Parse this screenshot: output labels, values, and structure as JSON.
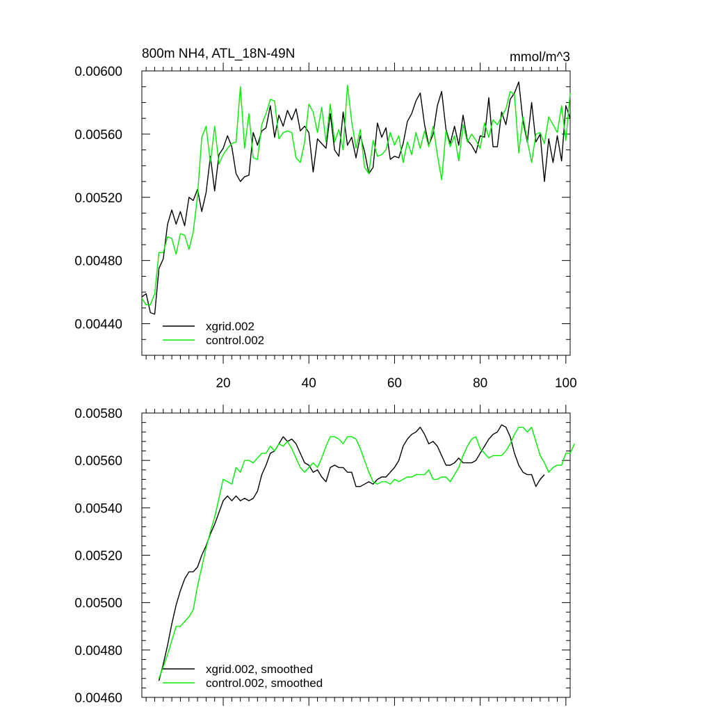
{
  "chart_data": [
    {
      "type": "line",
      "title_left": "800m NH4, ATL_18N-49N",
      "title_right": "mmol/m^3",
      "xlim": [
        1,
        101
      ],
      "ylim": [
        0.0042,
        0.006
      ],
      "x_ticks": [
        20,
        40,
        60,
        80,
        100
      ],
      "x_tick_labels": [
        "20",
        "40",
        "60",
        "80",
        "100"
      ],
      "y_ticks": [
        0.0044,
        0.0048,
        0.0052,
        0.0056,
        0.006
      ],
      "y_tick_labels": [
        "0.00440",
        "0.00480",
        "0.00520",
        "0.00560",
        "0.00600"
      ],
      "legend_position": "bottom-left",
      "series": [
        {
          "name": "xgrid.002",
          "color": "#000000",
          "values": [
            0.00457,
            0.00459,
            0.00447,
            0.00446,
            0.00475,
            0.00481,
            0.00503,
            0.00512,
            0.00503,
            0.00511,
            0.00502,
            0.0052,
            0.00518,
            0.00525,
            0.00511,
            0.00523,
            0.00546,
            0.00524,
            0.00547,
            0.00551,
            0.00559,
            0.00552,
            0.00535,
            0.0053,
            0.00533,
            0.00534,
            0.00561,
            0.00553,
            0.00562,
            0.00564,
            0.00578,
            0.00558,
            0.00572,
            0.00565,
            0.00575,
            0.00569,
            0.00576,
            0.00562,
            0.00565,
            0.00561,
            0.00536,
            0.00557,
            0.00554,
            0.00551,
            0.00573,
            0.0055,
            0.00546,
            0.00574,
            0.00553,
            0.00558,
            0.00545,
            0.00559,
            0.00549,
            0.00535,
            0.00539,
            0.00567,
            0.00558,
            0.00564,
            0.00544,
            0.00546,
            0.00545,
            0.00554,
            0.00568,
            0.00573,
            0.00581,
            0.00586,
            0.00566,
            0.00553,
            0.0056,
            0.00578,
            0.00587,
            0.00563,
            0.00554,
            0.00565,
            0.00553,
            0.00572,
            0.00556,
            0.00553,
            0.00548,
            0.00559,
            0.00558,
            0.00583,
            0.00552,
            0.00552,
            0.00574,
            0.00566,
            0.00582,
            0.00586,
            0.00593,
            0.00568,
            0.00555,
            0.0058,
            0.00555,
            0.0056,
            0.0053,
            0.00557,
            0.00542,
            0.00559,
            0.00543,
            0.00578,
            0.0057
          ]
        },
        {
          "name": "control.002",
          "color": "#00ee00",
          "values": [
            0.00456,
            0.00452,
            0.00452,
            0.00459,
            0.00485,
            0.00485,
            0.00495,
            0.00494,
            0.00484,
            0.00497,
            0.00496,
            0.00487,
            0.00498,
            0.00521,
            0.00558,
            0.00565,
            0.00542,
            0.00565,
            0.00541,
            0.00547,
            0.00551,
            0.00554,
            0.00555,
            0.0059,
            0.00551,
            0.00573,
            0.00545,
            0.00544,
            0.00566,
            0.00573,
            0.00582,
            0.00581,
            0.00557,
            0.00561,
            0.00562,
            0.00561,
            0.00545,
            0.00542,
            0.00555,
            0.00579,
            0.00574,
            0.00561,
            0.00577,
            0.00555,
            0.00579,
            0.00555,
            0.00563,
            0.0055,
            0.00591,
            0.00568,
            0.00551,
            0.00563,
            0.00539,
            0.00535,
            0.00556,
            0.00546,
            0.00547,
            0.0055,
            0.00561,
            0.00553,
            0.00559,
            0.00542,
            0.00555,
            0.00547,
            0.00561,
            0.00551,
            0.00562,
            0.00552,
            0.00565,
            0.00547,
            0.00531,
            0.00562,
            0.00552,
            0.00559,
            0.00543,
            0.00566,
            0.00555,
            0.0056,
            0.00556,
            0.00551,
            0.00567,
            0.00558,
            0.00569,
            0.00566,
            0.00571,
            0.00576,
            0.00587,
            0.00585,
            0.00548,
            0.00571,
            0.00556,
            0.00542,
            0.0056,
            0.00561,
            0.00554,
            0.00571,
            0.00566,
            0.00561,
            0.00578,
            0.00556,
            0.00586
          ]
        }
      ]
    },
    {
      "type": "line",
      "xlim": [
        1,
        101
      ],
      "ylim": [
        0.0046,
        0.0058
      ],
      "x_ticks": [
        20,
        40,
        60,
        80,
        100
      ],
      "y_ticks": [
        0.0046,
        0.0048,
        0.005,
        0.0052,
        0.0054,
        0.0056,
        0.0058
      ],
      "y_tick_labels": [
        "0.00460",
        "0.00480",
        "0.00500",
        "0.00520",
        "0.00540",
        "0.00560",
        "0.00580"
      ],
      "legend_position": "bottom-left",
      "series": [
        {
          "name": "xgrid.002, smoothed",
          "color": "#000000",
          "x_start": 5,
          "values": [
            0.00467,
            0.00474,
            0.00482,
            0.00491,
            0.00499,
            0.00505,
            0.0051,
            0.00513,
            0.00513,
            0.00515,
            0.0052,
            0.00524,
            0.00529,
            0.00533,
            0.00538,
            0.00543,
            0.00545,
            0.00543,
            0.00545,
            0.00543,
            0.00544,
            0.00543,
            0.00544,
            0.00547,
            0.00554,
            0.00558,
            0.00563,
            0.00564,
            0.00567,
            0.0057,
            0.00568,
            0.00569,
            0.00567,
            0.00563,
            0.00559,
            0.00558,
            0.00555,
            0.00556,
            0.00553,
            0.00551,
            0.00557,
            0.00558,
            0.00557,
            0.00557,
            0.00555,
            0.00555,
            0.00549,
            0.00549,
            0.0055,
            0.00551,
            0.0055,
            0.00552,
            0.00553,
            0.00553,
            0.00555,
            0.00557,
            0.0056,
            0.00566,
            0.00569,
            0.00571,
            0.00572,
            0.00574,
            0.00571,
            0.00567,
            0.00568,
            0.00566,
            0.00562,
            0.00558,
            0.00558,
            0.00559,
            0.00561,
            0.00559,
            0.00559,
            0.00559,
            0.0056,
            0.00563,
            0.00566,
            0.00569,
            0.00571,
            0.00572,
            0.00575,
            0.00574,
            0.0057,
            0.00563,
            0.00558,
            0.00555,
            0.00554,
            0.00554,
            0.00549,
            0.00552,
            0.00554
          ]
        },
        {
          "name": "control.002, smoothed",
          "color": "#00ee00",
          "x_start": 5,
          "values": [
            0.00468,
            0.00473,
            0.00478,
            0.00484,
            0.0049,
            0.0049,
            0.00492,
            0.00494,
            0.00497,
            0.00507,
            0.00515,
            0.00523,
            0.0053,
            0.00536,
            0.00544,
            0.00552,
            0.00551,
            0.0055,
            0.00557,
            0.00555,
            0.0056,
            0.0056,
            0.00559,
            0.00561,
            0.00563,
            0.00563,
            0.00566,
            0.00564,
            0.00567,
            0.00566,
            0.00568,
            0.00565,
            0.00561,
            0.00557,
            0.00555,
            0.00557,
            0.00559,
            0.00557,
            0.00561,
            0.00566,
            0.0057,
            0.0057,
            0.00569,
            0.00567,
            0.0057,
            0.0057,
            0.00569,
            0.00565,
            0.0056,
            0.00555,
            0.00551,
            0.0055,
            0.00551,
            0.00551,
            0.0055,
            0.00552,
            0.00551,
            0.00552,
            0.00553,
            0.00553,
            0.00554,
            0.00554,
            0.00554,
            0.00556,
            0.00552,
            0.00552,
            0.00553,
            0.00553,
            0.00551,
            0.00554,
            0.00557,
            0.00562,
            0.00566,
            0.00569,
            0.0057,
            0.00565,
            0.00563,
            0.00561,
            0.00562,
            0.00562,
            0.00562,
            0.00564,
            0.00567,
            0.00571,
            0.00574,
            0.00574,
            0.00572,
            0.00574,
            0.00568,
            0.00562,
            0.00559,
            0.00555,
            0.00557,
            0.00558,
            0.00558,
            0.00563,
            0.00563,
            0.00567
          ]
        }
      ]
    }
  ]
}
